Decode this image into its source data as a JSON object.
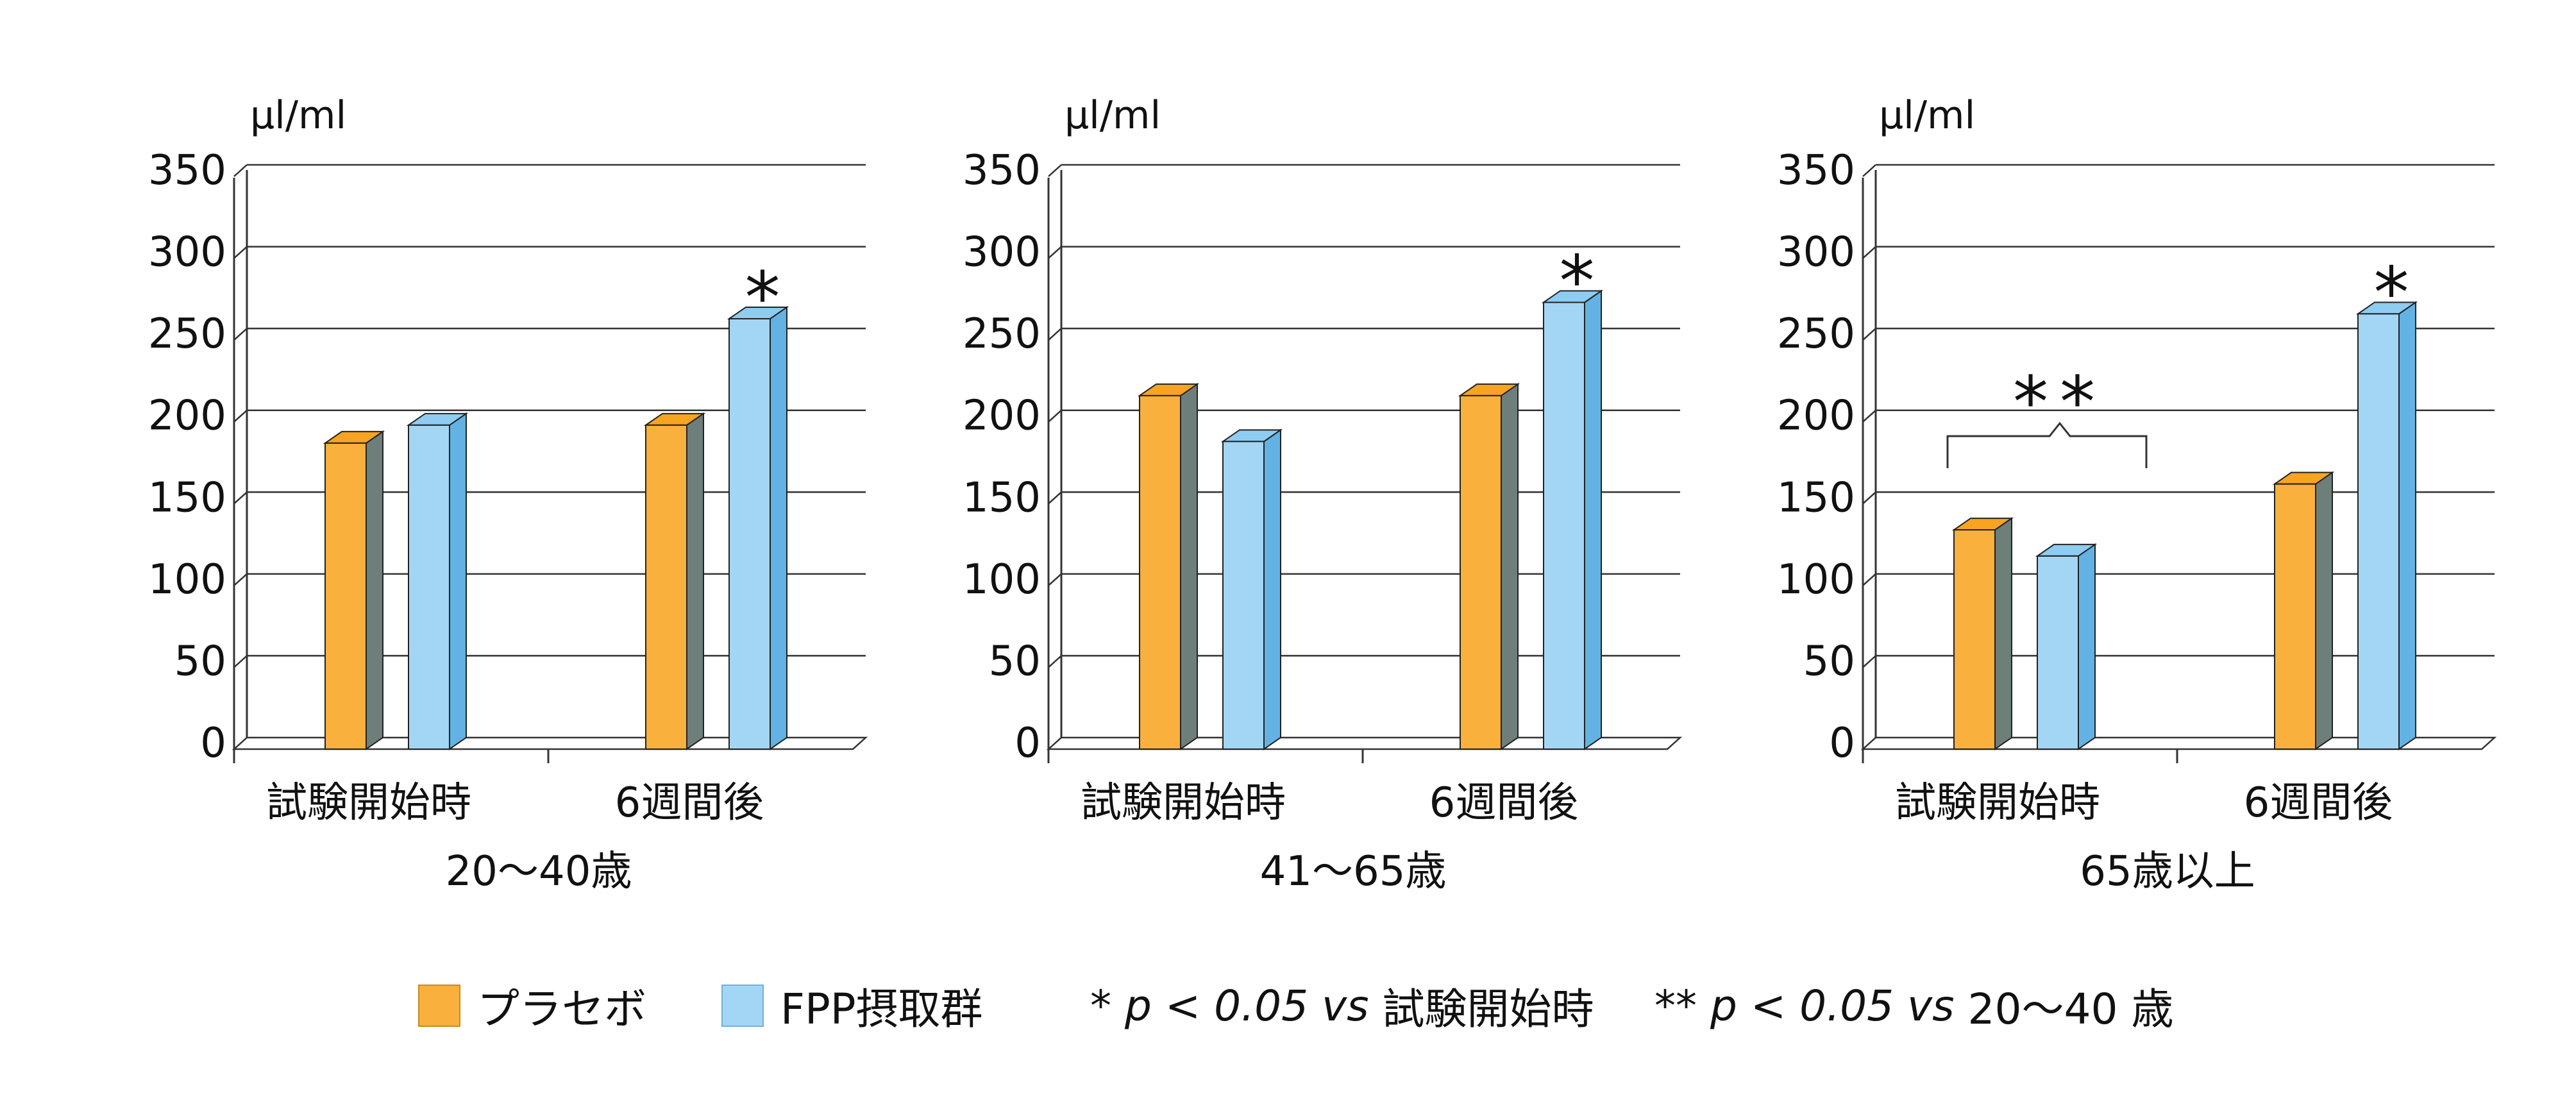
{
  "colors": {
    "placebo": "#F9B03D",
    "placebo_side": "#6E7F7B",
    "placebo_top": "#F7A421",
    "fpp": "#A3D6F5",
    "fpp_side": "#62B3E3",
    "fpp_top": "#8ECCF2"
  },
  "chart_data": [
    {
      "type": "bar",
      "title": "20〜40歳",
      "ylabel": "μl/ml",
      "ylim": [
        0,
        350
      ],
      "yticks": [
        0,
        50,
        100,
        150,
        200,
        250,
        300,
        350
      ],
      "categories": [
        "試験開始時",
        "6週間後"
      ],
      "series": [
        {
          "name": "プラセボ",
          "values": [
            187,
            198
          ]
        },
        {
          "name": "FPP摂取群",
          "values": [
            198,
            263
          ]
        }
      ],
      "annotations": [
        {
          "text": "*",
          "category": 1,
          "series": 1
        }
      ]
    },
    {
      "type": "bar",
      "title": "41〜65歳",
      "ylabel": "μl/ml",
      "ylim": [
        0,
        350
      ],
      "yticks": [
        0,
        50,
        100,
        150,
        200,
        250,
        300,
        350
      ],
      "categories": [
        "試験開始時",
        "6週間後"
      ],
      "series": [
        {
          "name": "プラセボ",
          "values": [
            216,
            216
          ]
        },
        {
          "name": "FPP摂取群",
          "values": [
            188,
            273
          ]
        }
      ],
      "annotations": [
        {
          "text": "*",
          "category": 1,
          "series": 1
        }
      ]
    },
    {
      "type": "bar",
      "title": "65歳以上",
      "ylabel": "μl/ml",
      "ylim": [
        0,
        350
      ],
      "yticks": [
        0,
        50,
        100,
        150,
        200,
        250,
        300,
        350
      ],
      "categories": [
        "試験開始時",
        "6週間後"
      ],
      "series": [
        {
          "name": "プラセボ",
          "values": [
            134,
            162
          ]
        },
        {
          "name": "FPP摂取群",
          "values": [
            118,
            266
          ]
        }
      ],
      "annotations": [
        {
          "text": "*",
          "category": 1,
          "series": 1
        },
        {
          "text": "**",
          "category": 0,
          "bracket": true
        }
      ]
    }
  ],
  "legend": {
    "items": [
      {
        "label": "プラセボ",
        "color": "#F9B03D"
      },
      {
        "label": "FPP摂取群",
        "color": "#A3D6F5"
      }
    ],
    "note1_prefix": "* ",
    "note1_italic": "p < 0.05 vs",
    "note1_suffix": " 試験開始時",
    "note2_prefix": "** ",
    "note2_italic": "p < 0.05 vs",
    "note2_suffix": " 20〜40 歳"
  }
}
